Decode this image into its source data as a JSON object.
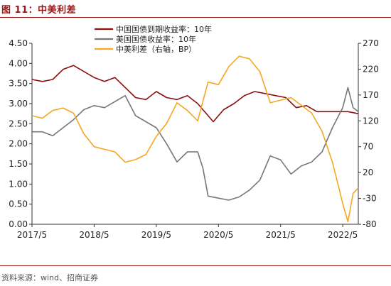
{
  "figure_title": "图 11：中美利差",
  "source_note": "资料来源：wind、招商证券",
  "chart_data": {
    "type": "line",
    "title": "",
    "xlabel": "",
    "ylabel_left": "",
    "ylabel_right": "",
    "x_ticks": [
      "2017/5",
      "2018/5",
      "2019/5",
      "2020/5",
      "2021/5",
      "2022/5"
    ],
    "x_range": [
      "2017-05",
      "2022-08"
    ],
    "y_left": {
      "ticks": [
        "0.00",
        "0.50",
        "1.00",
        "1.50",
        "2.00",
        "2.50",
        "3.00",
        "3.50",
        "4.00",
        "4.50"
      ],
      "range": [
        0,
        4.5
      ]
    },
    "y_right": {
      "ticks": [
        "-80",
        "-30",
        "20",
        "70",
        "120",
        "170",
        "220",
        "270"
      ],
      "range": [
        -80,
        270
      ]
    },
    "grid": false,
    "legend_position": "top-center",
    "series": [
      {
        "name": "中国国债到期收益率：10年",
        "axis": "left",
        "color": "#8b0f0f",
        "points": [
          [
            "2017-05",
            3.6
          ],
          [
            "2017-07",
            3.55
          ],
          [
            "2017-09",
            3.6
          ],
          [
            "2017-11",
            3.85
          ],
          [
            "2018-01",
            3.95
          ],
          [
            "2018-03",
            3.8
          ],
          [
            "2018-05",
            3.65
          ],
          [
            "2018-07",
            3.55
          ],
          [
            "2018-09",
            3.65
          ],
          [
            "2018-11",
            3.4
          ],
          [
            "2019-01",
            3.15
          ],
          [
            "2019-03",
            3.1
          ],
          [
            "2019-05",
            3.3
          ],
          [
            "2019-07",
            3.15
          ],
          [
            "2019-09",
            3.1
          ],
          [
            "2019-11",
            3.2
          ],
          [
            "2020-01",
            3.0
          ],
          [
            "2020-03",
            2.7
          ],
          [
            "2020-04",
            2.55
          ],
          [
            "2020-06",
            2.85
          ],
          [
            "2020-08",
            3.0
          ],
          [
            "2020-10",
            3.2
          ],
          [
            "2020-12",
            3.3
          ],
          [
            "2021-02",
            3.25
          ],
          [
            "2021-04",
            3.2
          ],
          [
            "2021-06",
            3.15
          ],
          [
            "2021-08",
            2.9
          ],
          [
            "2021-10",
            2.95
          ],
          [
            "2021-12",
            2.8
          ],
          [
            "2022-02",
            2.8
          ],
          [
            "2022-04",
            2.8
          ],
          [
            "2022-06",
            2.8
          ],
          [
            "2022-08",
            2.75
          ]
        ]
      },
      {
        "name": "美国国债收益率：10年",
        "axis": "left",
        "color": "#777777",
        "points": [
          [
            "2017-05",
            2.3
          ],
          [
            "2017-07",
            2.3
          ],
          [
            "2017-09",
            2.2
          ],
          [
            "2017-11",
            2.4
          ],
          [
            "2018-01",
            2.6
          ],
          [
            "2018-03",
            2.85
          ],
          [
            "2018-05",
            2.95
          ],
          [
            "2018-07",
            2.9
          ],
          [
            "2018-09",
            3.05
          ],
          [
            "2018-11",
            3.2
          ],
          [
            "2019-01",
            2.7
          ],
          [
            "2019-03",
            2.55
          ],
          [
            "2019-05",
            2.4
          ],
          [
            "2019-07",
            2.0
          ],
          [
            "2019-09",
            1.55
          ],
          [
            "2019-11",
            1.8
          ],
          [
            "2020-01",
            1.8
          ],
          [
            "2020-02",
            1.4
          ],
          [
            "2020-03",
            0.7
          ],
          [
            "2020-05",
            0.65
          ],
          [
            "2020-07",
            0.6
          ],
          [
            "2020-09",
            0.68
          ],
          [
            "2020-11",
            0.85
          ],
          [
            "2021-01",
            1.1
          ],
          [
            "2021-03",
            1.7
          ],
          [
            "2021-05",
            1.6
          ],
          [
            "2021-07",
            1.25
          ],
          [
            "2021-09",
            1.45
          ],
          [
            "2021-11",
            1.55
          ],
          [
            "2022-01",
            1.8
          ],
          [
            "2022-03",
            2.4
          ],
          [
            "2022-05",
            2.9
          ],
          [
            "2022-06",
            3.4
          ],
          [
            "2022-07",
            2.9
          ],
          [
            "2022-08",
            2.8
          ]
        ]
      },
      {
        "name": "中美利差（右轴，BP）",
        "axis": "right",
        "color": "#f5a623",
        "points": [
          [
            "2017-05",
            130
          ],
          [
            "2017-07",
            125
          ],
          [
            "2017-09",
            140
          ],
          [
            "2017-11",
            145
          ],
          [
            "2018-01",
            135
          ],
          [
            "2018-03",
            95
          ],
          [
            "2018-05",
            70
          ],
          [
            "2018-07",
            65
          ],
          [
            "2018-09",
            60
          ],
          [
            "2018-11",
            40
          ],
          [
            "2019-01",
            45
          ],
          [
            "2019-03",
            55
          ],
          [
            "2019-05",
            90
          ],
          [
            "2019-07",
            115
          ],
          [
            "2019-09",
            155
          ],
          [
            "2019-11",
            140
          ],
          [
            "2020-01",
            120
          ],
          [
            "2020-03",
            195
          ],
          [
            "2020-05",
            190
          ],
          [
            "2020-07",
            225
          ],
          [
            "2020-09",
            245
          ],
          [
            "2020-11",
            240
          ],
          [
            "2021-01",
            215
          ],
          [
            "2021-03",
            155
          ],
          [
            "2021-05",
            160
          ],
          [
            "2021-07",
            165
          ],
          [
            "2021-09",
            150
          ],
          [
            "2021-11",
            135
          ],
          [
            "2022-01",
            100
          ],
          [
            "2022-02",
            70
          ],
          [
            "2022-03",
            40
          ],
          [
            "2022-04",
            0
          ],
          [
            "2022-05",
            -40
          ],
          [
            "2022-06",
            -75
          ],
          [
            "2022-07",
            -20
          ],
          [
            "2022-08",
            -10
          ]
        ]
      }
    ]
  }
}
